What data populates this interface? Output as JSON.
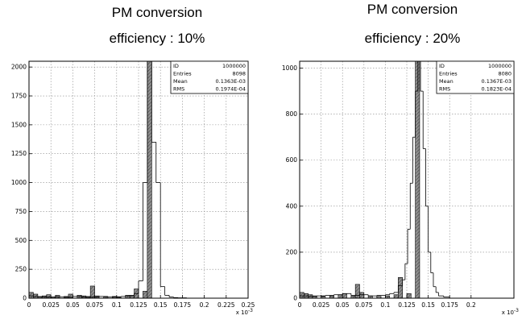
{
  "captions": {
    "left_line1": "PM conversion",
    "left_line2": "efficiency : 10%",
    "right_line1": "PM conversion",
    "right_line2": "efficiency : 20%"
  },
  "colors": {
    "frame": "#000000",
    "grid": "#8a8a8a",
    "hatch_fill": "#8f8f8f"
  },
  "chart_data": [
    {
      "type": "bar",
      "title": "",
      "xlabel": "x 10^-3",
      "ylabel": "",
      "xlim": [
        0,
        0.25
      ],
      "ylim": [
        0,
        2050
      ],
      "grid": true,
      "x_ticks": [
        "0",
        "0.025",
        "0.05",
        "0.075",
        "0.1",
        "0.125",
        "0.15",
        "0.175",
        "0.2",
        "0.225",
        "0.25"
      ],
      "x_tick_values": [
        0,
        0.025,
        0.05,
        0.075,
        0.1,
        0.125,
        0.15,
        0.175,
        0.2,
        0.225,
        0.25
      ],
      "y_ticks": [
        "0",
        "250",
        "500",
        "750",
        "1000",
        "1250",
        "1500",
        "1750",
        "2000"
      ],
      "y_tick_values": [
        0,
        250,
        500,
        750,
        1000,
        1250,
        1500,
        1750,
        2000
      ],
      "stats_box": {
        "rows": [
          {
            "label": "ID",
            "value": "1000000"
          },
          {
            "label": "Entries",
            "value": "8098"
          },
          {
            "label": "Mean",
            "value": "0.1363E-03"
          },
          {
            "label": "RMS",
            "value": "0.1974E-04"
          }
        ],
        "placement": "top-right"
      },
      "series": [
        {
          "style": "outline-histogram",
          "bins": [
            {
              "x0": 0.0,
              "x1": 0.005,
              "y": 20
            },
            {
              "x0": 0.005,
              "x1": 0.01,
              "y": 15
            },
            {
              "x0": 0.01,
              "x1": 0.02,
              "y": 12
            },
            {
              "x0": 0.02,
              "x1": 0.03,
              "y": 10
            },
            {
              "x0": 0.03,
              "x1": 0.04,
              "y": 12
            },
            {
              "x0": 0.04,
              "x1": 0.05,
              "y": 8
            },
            {
              "x0": 0.05,
              "x1": 0.06,
              "y": 15
            },
            {
              "x0": 0.06,
              "x1": 0.065,
              "y": 10
            },
            {
              "x0": 0.065,
              "x1": 0.07,
              "y": 8
            },
            {
              "x0": 0.07,
              "x1": 0.08,
              "y": 10
            },
            {
              "x0": 0.08,
              "x1": 0.09,
              "y": 15
            },
            {
              "x0": 0.09,
              "x1": 0.1,
              "y": 10
            },
            {
              "x0": 0.1,
              "x1": 0.105,
              "y": 12
            },
            {
              "x0": 0.105,
              "x1": 0.11,
              "y": 15
            },
            {
              "x0": 0.11,
              "x1": 0.115,
              "y": 20
            },
            {
              "x0": 0.115,
              "x1": 0.12,
              "y": 25
            },
            {
              "x0": 0.12,
              "x1": 0.125,
              "y": 40
            },
            {
              "x0": 0.125,
              "x1": 0.13,
              "y": 150
            },
            {
              "x0": 0.13,
              "x1": 0.135,
              "y": 1000
            },
            {
              "x0": 0.135,
              "x1": 0.14,
              "y": 2050
            },
            {
              "x0": 0.14,
              "x1": 0.145,
              "y": 1350
            },
            {
              "x0": 0.145,
              "x1": 0.15,
              "y": 1000
            },
            {
              "x0": 0.15,
              "x1": 0.155,
              "y": 100
            },
            {
              "x0": 0.155,
              "x1": 0.16,
              "y": 25
            },
            {
              "x0": 0.16,
              "x1": 0.165,
              "y": 10
            },
            {
              "x0": 0.165,
              "x1": 0.17,
              "y": 5
            },
            {
              "x0": 0.17,
              "x1": 0.18,
              "y": 3
            }
          ]
        },
        {
          "style": "hatched-histogram",
          "bins": [
            {
              "x0": 0.0,
              "x1": 0.005,
              "y": 50
            },
            {
              "x0": 0.005,
              "x1": 0.01,
              "y": 35
            },
            {
              "x0": 0.01,
              "x1": 0.015,
              "y": 15
            },
            {
              "x0": 0.015,
              "x1": 0.02,
              "y": 20
            },
            {
              "x0": 0.02,
              "x1": 0.025,
              "y": 30
            },
            {
              "x0": 0.025,
              "x1": 0.03,
              "y": 10
            },
            {
              "x0": 0.03,
              "x1": 0.035,
              "y": 25
            },
            {
              "x0": 0.04,
              "x1": 0.045,
              "y": 15
            },
            {
              "x0": 0.045,
              "x1": 0.05,
              "y": 35
            },
            {
              "x0": 0.055,
              "x1": 0.06,
              "y": 25
            },
            {
              "x0": 0.06,
              "x1": 0.065,
              "y": 20
            },
            {
              "x0": 0.065,
              "x1": 0.07,
              "y": 15
            },
            {
              "x0": 0.07,
              "x1": 0.075,
              "y": 105
            },
            {
              "x0": 0.075,
              "x1": 0.08,
              "y": 20
            },
            {
              "x0": 0.085,
              "x1": 0.09,
              "y": 10
            },
            {
              "x0": 0.095,
              "x1": 0.1,
              "y": 15
            },
            {
              "x0": 0.1,
              "x1": 0.105,
              "y": 8
            },
            {
              "x0": 0.11,
              "x1": 0.115,
              "y": 25
            },
            {
              "x0": 0.115,
              "x1": 0.12,
              "y": 20
            },
            {
              "x0": 0.12,
              "x1": 0.125,
              "y": 80
            },
            {
              "x0": 0.13,
              "x1": 0.135,
              "y": 60
            },
            {
              "x0": 0.135,
              "x1": 0.14,
              "y": 2050
            }
          ]
        }
      ]
    },
    {
      "type": "bar",
      "title": "",
      "xlabel": "x 10^-3",
      "ylabel": "",
      "xlim": [
        0,
        0.25
      ],
      "ylim": [
        0,
        1030
      ],
      "grid": true,
      "x_ticks": [
        "0",
        "0.025",
        "0.05",
        "0.075",
        "0.1",
        "0.125",
        "0.15",
        "0.175",
        "0.2"
      ],
      "x_tick_values": [
        0,
        0.025,
        0.05,
        0.075,
        0.1,
        0.125,
        0.15,
        0.175,
        0.2
      ],
      "y_ticks": [
        "0",
        "200",
        "400",
        "600",
        "800",
        "1000"
      ],
      "y_tick_values": [
        0,
        200,
        400,
        600,
        800,
        1000
      ],
      "stats_box": {
        "rows": [
          {
            "label": "ID",
            "value": "1000000"
          },
          {
            "label": "Entries",
            "value": "8080"
          },
          {
            "label": "Mean",
            "value": "0.1367E-03"
          },
          {
            "label": "RMS",
            "value": "0.1823E-04"
          }
        ],
        "placement": "top-right"
      },
      "series": [
        {
          "style": "outline-histogram",
          "bins": [
            {
              "x0": 0.0,
              "x1": 0.01,
              "y": 10
            },
            {
              "x0": 0.01,
              "x1": 0.02,
              "y": 8
            },
            {
              "x0": 0.02,
              "x1": 0.03,
              "y": 10
            },
            {
              "x0": 0.03,
              "x1": 0.04,
              "y": 12
            },
            {
              "x0": 0.04,
              "x1": 0.05,
              "y": 15
            },
            {
              "x0": 0.05,
              "x1": 0.06,
              "y": 20
            },
            {
              "x0": 0.06,
              "x1": 0.07,
              "y": 12
            },
            {
              "x0": 0.07,
              "x1": 0.08,
              "y": 15
            },
            {
              "x0": 0.08,
              "x1": 0.09,
              "y": 10
            },
            {
              "x0": 0.09,
              "x1": 0.1,
              "y": 12
            },
            {
              "x0": 0.1,
              "x1": 0.105,
              "y": 15
            },
            {
              "x0": 0.105,
              "x1": 0.11,
              "y": 20
            },
            {
              "x0": 0.11,
              "x1": 0.115,
              "y": 25
            },
            {
              "x0": 0.115,
              "x1": 0.12,
              "y": 55
            },
            {
              "x0": 0.12,
              "x1": 0.123,
              "y": 80
            },
            {
              "x0": 0.123,
              "x1": 0.126,
              "y": 150
            },
            {
              "x0": 0.126,
              "x1": 0.129,
              "y": 300
            },
            {
              "x0": 0.129,
              "x1": 0.132,
              "y": 500
            },
            {
              "x0": 0.132,
              "x1": 0.135,
              "y": 700
            },
            {
              "x0": 0.135,
              "x1": 0.138,
              "y": 900
            },
            {
              "x0": 0.138,
              "x1": 0.141,
              "y": 1030
            },
            {
              "x0": 0.141,
              "x1": 0.144,
              "y": 900
            },
            {
              "x0": 0.144,
              "x1": 0.147,
              "y": 650
            },
            {
              "x0": 0.147,
              "x1": 0.15,
              "y": 400
            },
            {
              "x0": 0.15,
              "x1": 0.153,
              "y": 200
            },
            {
              "x0": 0.153,
              "x1": 0.156,
              "y": 110
            },
            {
              "x0": 0.156,
              "x1": 0.159,
              "y": 50
            },
            {
              "x0": 0.159,
              "x1": 0.162,
              "y": 25
            },
            {
              "x0": 0.162,
              "x1": 0.168,
              "y": 10
            },
            {
              "x0": 0.168,
              "x1": 0.175,
              "y": 5
            }
          ]
        },
        {
          "style": "hatched-histogram",
          "bins": [
            {
              "x0": 0.0,
              "x1": 0.005,
              "y": 25
            },
            {
              "x0": 0.005,
              "x1": 0.01,
              "y": 20
            },
            {
              "x0": 0.01,
              "x1": 0.015,
              "y": 15
            },
            {
              "x0": 0.015,
              "x1": 0.02,
              "y": 10
            },
            {
              "x0": 0.025,
              "x1": 0.03,
              "y": 8
            },
            {
              "x0": 0.035,
              "x1": 0.04,
              "y": 10
            },
            {
              "x0": 0.045,
              "x1": 0.05,
              "y": 15
            },
            {
              "x0": 0.05,
              "x1": 0.055,
              "y": 20
            },
            {
              "x0": 0.06,
              "x1": 0.065,
              "y": 10
            },
            {
              "x0": 0.065,
              "x1": 0.07,
              "y": 60
            },
            {
              "x0": 0.07,
              "x1": 0.075,
              "y": 25
            },
            {
              "x0": 0.08,
              "x1": 0.085,
              "y": 10
            },
            {
              "x0": 0.09,
              "x1": 0.095,
              "y": 8
            },
            {
              "x0": 0.1,
              "x1": 0.105,
              "y": 10
            },
            {
              "x0": 0.11,
              "x1": 0.115,
              "y": 15
            },
            {
              "x0": 0.115,
              "x1": 0.12,
              "y": 90
            },
            {
              "x0": 0.125,
              "x1": 0.13,
              "y": 20
            },
            {
              "x0": 0.135,
              "x1": 0.14,
              "y": 1030
            }
          ]
        }
      ]
    }
  ]
}
